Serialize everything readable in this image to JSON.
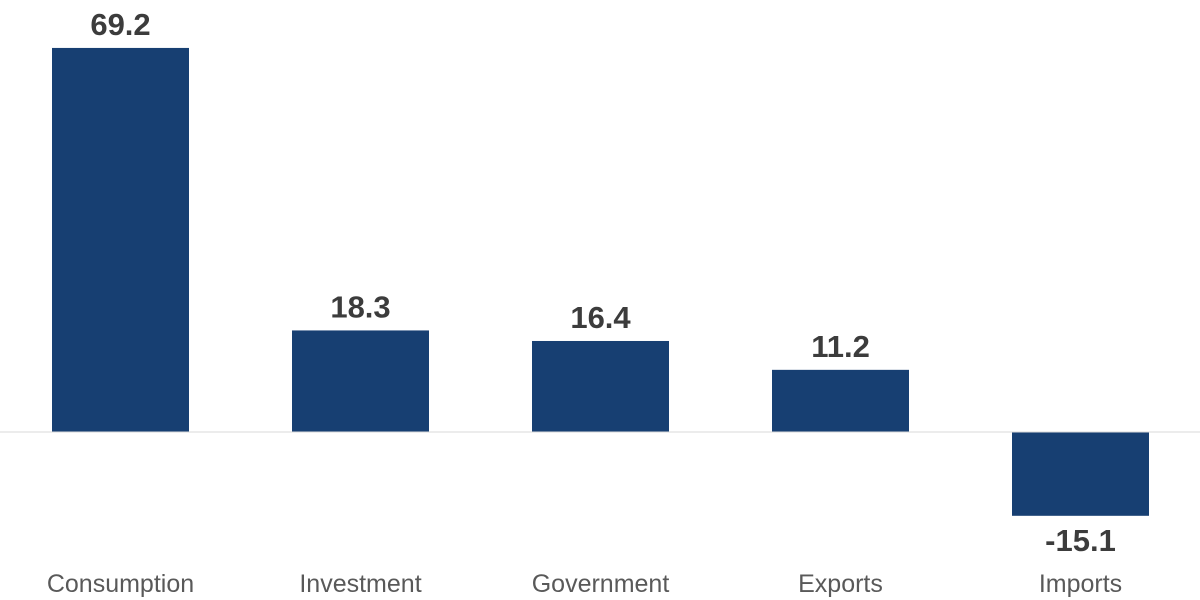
{
  "chart_data": {
    "type": "bar",
    "title": "",
    "xlabel": "",
    "ylabel": "",
    "categories": [
      "Consumption",
      "Investment",
      "Government",
      "Exports",
      "Imports"
    ],
    "values": [
      69.2,
      18.3,
      16.4,
      11.2,
      -15.1
    ],
    "value_labels": [
      "69.2",
      "18.3",
      "16.4",
      "11.2",
      "-15.1"
    ],
    "ylim": [
      -18,
      72
    ],
    "grid": false,
    "legend": "none",
    "colors": {
      "bar": "#173f72",
      "baseline": "#d9d9d9"
    }
  }
}
